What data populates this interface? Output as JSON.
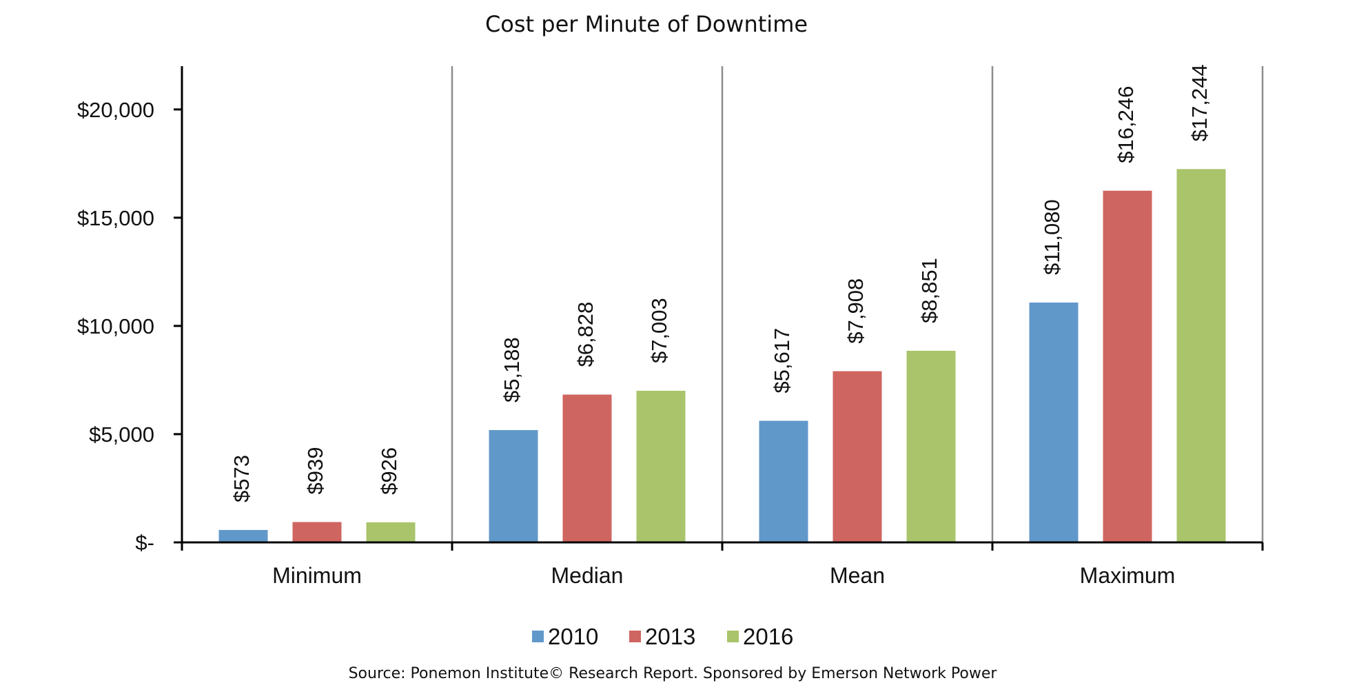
{
  "chart_data": {
    "type": "bar",
    "title": "Cost per Minute of Downtime",
    "categories": [
      "Minimum",
      "Median",
      "Mean",
      "Maximum"
    ],
    "series": [
      {
        "name": "2010",
        "color": "#6198CA",
        "values": [
          573,
          5188,
          5617,
          11080
        ],
        "labels": [
          "$573",
          "$5,188",
          "$5,617",
          "$11,080"
        ]
      },
      {
        "name": "2013",
        "color": "#CF6560",
        "values": [
          939,
          6828,
          7908,
          16246
        ],
        "labels": [
          "$939",
          "$6,828",
          "$7,908",
          "$16,246"
        ]
      },
      {
        "name": "2016",
        "color": "#A9C46A",
        "values": [
          926,
          7003,
          8851,
          17244
        ],
        "labels": [
          "$926",
          "$7,003",
          "$8,851",
          "$17,244"
        ]
      }
    ],
    "yticks": [
      0,
      5000,
      10000,
      15000,
      20000
    ],
    "ytick_labels": [
      "$-",
      "$5,000",
      "$10,000",
      "$15,000",
      "$20,000"
    ],
    "ylim": [
      0,
      22000
    ],
    "legend_position": "bottom",
    "source": "Source: Ponemon Institute© Research Report. Sponsored by Emerson Network Power"
  }
}
